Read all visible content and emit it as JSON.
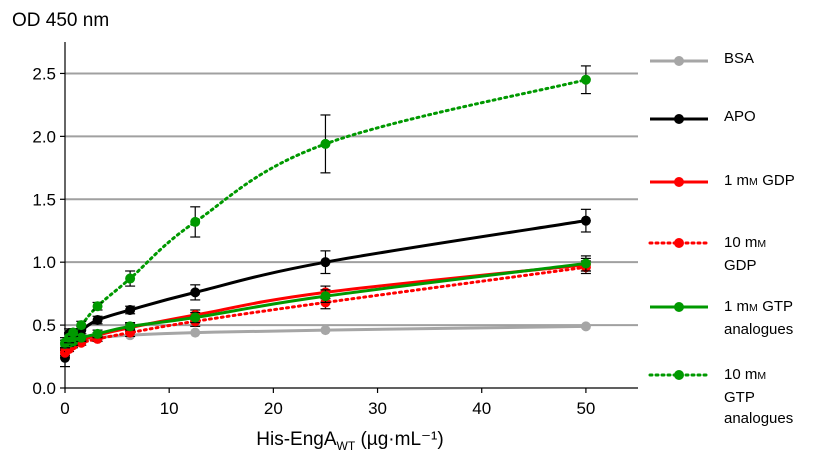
{
  "chart_data": {
    "type": "line",
    "ylabel": "OD 450 nm",
    "xlabel": "His-EngA",
    "xlabel_sub": "WT",
    "xlabel_unit": " (µg·mL⁻¹)",
    "xlim": [
      0,
      55
    ],
    "ylim": [
      0,
      2.75
    ],
    "xticks": [
      0,
      10,
      20,
      30,
      40,
      50
    ],
    "yticks": [
      0.0,
      0.5,
      1.0,
      1.5,
      2.0,
      2.5
    ],
    "ytick_labels": [
      "0.0",
      "0.5",
      "1.0",
      "1.5",
      "2.0",
      "2.5"
    ],
    "grid": "horizontal",
    "legend_position": "right",
    "x": [
      0,
      0.39,
      0.78,
      1.56,
      3.125,
      6.25,
      12.5,
      25,
      50
    ],
    "series": [
      {
        "name": "BSA",
        "color": "#a6a6a6",
        "dash": "solid",
        "values": [
          0.33,
          0.35,
          0.37,
          0.38,
          0.4,
          0.42,
          0.44,
          0.46,
          0.49
        ],
        "errors": [
          0.01,
          0.01,
          0.01,
          0.01,
          0.01,
          0.01,
          0.01,
          0.01,
          0.01
        ]
      },
      {
        "name": "APO",
        "color": "#000000",
        "dash": "solid",
        "values": [
          0.24,
          0.43,
          0.44,
          0.46,
          0.54,
          0.62,
          0.76,
          1.0,
          1.33
        ],
        "errors": [
          0.07,
          0.04,
          0.03,
          0.03,
          0.03,
          0.03,
          0.06,
          0.09,
          0.09
        ]
      },
      {
        "name": "1 mM GDP",
        "color": "#ff0000",
        "dash": "solid",
        "values": [
          0.3,
          0.33,
          0.36,
          0.38,
          0.42,
          0.48,
          0.58,
          0.76,
          0.98
        ],
        "errors": [
          0.02,
          0.02,
          0.02,
          0.02,
          0.02,
          0.03,
          0.04,
          0.05,
          0.05
        ]
      },
      {
        "name": "10 mM GDP",
        "color": "#ff0000",
        "dash": "dotted",
        "values": [
          0.28,
          0.31,
          0.34,
          0.36,
          0.39,
          0.44,
          0.53,
          0.68,
          0.96
        ],
        "errors": [
          0.02,
          0.02,
          0.02,
          0.02,
          0.02,
          0.03,
          0.04,
          0.05,
          0.05
        ]
      },
      {
        "name": "1 mM GTP analogues",
        "color": "#009900",
        "dash": "solid",
        "values": [
          0.35,
          0.36,
          0.37,
          0.4,
          0.43,
          0.49,
          0.56,
          0.73,
          0.99
        ],
        "errors": [
          0.03,
          0.03,
          0.03,
          0.03,
          0.03,
          0.03,
          0.04,
          0.05,
          0.06
        ]
      },
      {
        "name": "10 mM GTP analogues",
        "color": "#009900",
        "dash": "dotted",
        "values": [
          0.36,
          0.4,
          0.44,
          0.5,
          0.65,
          0.87,
          1.32,
          1.94,
          2.45
        ],
        "errors": [
          0.04,
          0.04,
          0.03,
          0.03,
          0.03,
          0.06,
          0.12,
          0.23,
          0.11
        ]
      }
    ]
  },
  "legend": [
    {
      "lines": [
        "BSA"
      ]
    },
    {
      "lines": [
        "APO"
      ]
    },
    {
      "lines": [
        "1 mM GDP"
      ]
    },
    {
      "lines": [
        "10 mM",
        "GDP"
      ]
    },
    {
      "lines": [
        "1 mM GTP",
        "analogues"
      ]
    },
    {
      "lines": [
        "10 mM",
        "GTP",
        "analogues"
      ]
    }
  ]
}
